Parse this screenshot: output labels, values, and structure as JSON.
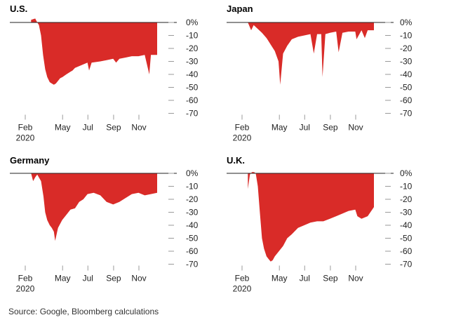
{
  "source": "Source: Google, Bloomberg calculations",
  "colors": {
    "fill": "#d92b28",
    "axis": "#222222",
    "tick": "#9a9a9a"
  },
  "chart_data": [
    {
      "type": "area",
      "title": "U.S.",
      "xlabel": "",
      "ylabel": "",
      "x_ticks": [
        "Feb",
        "May",
        "Jul",
        "Sep",
        "Nov"
      ],
      "x_year": "2020",
      "y_ticks": [
        "0%",
        "-10",
        "-20",
        "-30",
        "-40",
        "-50",
        "-60",
        "-70"
      ],
      "ylim": [
        -70,
        0
      ],
      "x": [
        "2020-02-15",
        "2020-02-25",
        "2020-03-01",
        "2020-03-05",
        "2020-03-10",
        "2020-03-15",
        "2020-03-20",
        "2020-03-25",
        "2020-03-31",
        "2020-04-05",
        "2020-04-10",
        "2020-04-15",
        "2020-04-20",
        "2020-04-25",
        "2020-05-01",
        "2020-05-10",
        "2020-05-20",
        "2020-05-25",
        "2020-05-31",
        "2020-06-15",
        "2020-06-30",
        "2020-07-04",
        "2020-07-10",
        "2020-07-31",
        "2020-08-15",
        "2020-08-31",
        "2020-09-07",
        "2020-09-15",
        "2020-09-30",
        "2020-10-15",
        "2020-10-31",
        "2020-11-15",
        "2020-11-26",
        "2020-11-30",
        "2020-12-15"
      ],
      "values": [
        2,
        3,
        0,
        -2,
        -10,
        -25,
        -36,
        -42,
        -46,
        -47,
        -48,
        -47,
        -45,
        -43,
        -42,
        -40,
        -38,
        -37,
        -35,
        -33,
        -31,
        -37,
        -31,
        -30,
        -29,
        -28,
        -31,
        -28,
        -27,
        -26,
        -26,
        -25,
        -40,
        -25,
        -25
      ]
    },
    {
      "type": "area",
      "title": "Japan",
      "xlabel": "",
      "ylabel": "",
      "x_ticks": [
        "Feb",
        "May",
        "Jul",
        "Sep",
        "Nov"
      ],
      "x_year": "2020",
      "y_ticks": [
        "0%",
        "-10",
        "-20",
        "-30",
        "-40",
        "-50",
        "-60",
        "-70"
      ],
      "ylim": [
        -70,
        0
      ],
      "x": [
        "2020-02-15",
        "2020-02-23",
        "2020-02-29",
        "2020-03-10",
        "2020-03-20",
        "2020-03-31",
        "2020-04-10",
        "2020-04-20",
        "2020-04-29",
        "2020-05-03",
        "2020-05-10",
        "2020-05-20",
        "2020-05-31",
        "2020-06-15",
        "2020-06-30",
        "2020-07-15",
        "2020-07-23",
        "2020-07-31",
        "2020-08-10",
        "2020-08-13",
        "2020-08-20",
        "2020-08-31",
        "2020-09-15",
        "2020-09-21",
        "2020-09-30",
        "2020-10-15",
        "2020-10-31",
        "2020-11-03",
        "2020-11-15",
        "2020-11-23",
        "2020-11-30",
        "2020-12-15"
      ],
      "values": [
        0,
        -6,
        -2,
        -5,
        -8,
        -12,
        -17,
        -22,
        -30,
        -48,
        -24,
        -18,
        -13,
        -11,
        -10,
        -9,
        -24,
        -9,
        -9,
        -42,
        -9,
        -8,
        -7,
        -23,
        -8,
        -7,
        -7,
        -13,
        -6,
        -12,
        -6,
        -6
      ]
    },
    {
      "type": "area",
      "title": "Germany",
      "xlabel": "",
      "ylabel": "",
      "x_ticks": [
        "Feb",
        "May",
        "Jul",
        "Sep",
        "Nov"
      ],
      "x_year": "2020",
      "y_ticks": [
        "0%",
        "-10",
        "-20",
        "-30",
        "-40",
        "-50",
        "-60",
        "-70"
      ],
      "ylim": [
        -70,
        0
      ],
      "x": [
        "2020-02-15",
        "2020-02-20",
        "2020-02-25",
        "2020-03-01",
        "2020-03-10",
        "2020-03-16",
        "2020-03-20",
        "2020-03-25",
        "2020-03-31",
        "2020-04-05",
        "2020-04-10",
        "2020-04-13",
        "2020-04-20",
        "2020-04-30",
        "2020-05-10",
        "2020-05-20",
        "2020-05-31",
        "2020-06-10",
        "2020-06-20",
        "2020-06-30",
        "2020-07-15",
        "2020-07-31",
        "2020-08-15",
        "2020-08-31",
        "2020-09-15",
        "2020-09-30",
        "2020-10-15",
        "2020-10-31",
        "2020-11-15",
        "2020-11-30",
        "2020-12-15"
      ],
      "values": [
        0,
        -6,
        -3,
        -1,
        -6,
        -18,
        -30,
        -36,
        -40,
        -42,
        -45,
        -52,
        -42,
        -36,
        -32,
        -28,
        -27,
        -22,
        -20,
        -16,
        -15,
        -17,
        -22,
        -24,
        -22,
        -19,
        -16,
        -15,
        -17,
        -16,
        -15
      ]
    },
    {
      "type": "area",
      "title": "U.K.",
      "xlabel": "",
      "ylabel": "",
      "x_ticks": [
        "Feb",
        "May",
        "Jul",
        "Sep",
        "Nov"
      ],
      "x_year": "2020",
      "y_ticks": [
        "0%",
        "-10",
        "-20",
        "-30",
        "-40",
        "-50",
        "-60",
        "-70"
      ],
      "ylim": [
        -70,
        0
      ],
      "x": [
        "2020-02-15",
        "2020-02-20",
        "2020-02-25",
        "2020-03-01",
        "2020-03-05",
        "2020-03-10",
        "2020-03-15",
        "2020-03-20",
        "2020-03-25",
        "2020-03-31",
        "2020-04-05",
        "2020-04-10",
        "2020-04-15",
        "2020-04-20",
        "2020-04-30",
        "2020-05-10",
        "2020-05-20",
        "2020-05-31",
        "2020-06-15",
        "2020-06-30",
        "2020-07-15",
        "2020-07-31",
        "2020-08-15",
        "2020-08-31",
        "2020-09-15",
        "2020-09-30",
        "2020-10-15",
        "2020-10-31",
        "2020-11-05",
        "2020-11-15",
        "2020-11-30",
        "2020-12-15"
      ],
      "values": [
        -12,
        -1,
        1,
        1,
        0,
        -10,
        -30,
        -50,
        -58,
        -64,
        -66,
        -68,
        -67,
        -64,
        -60,
        -56,
        -50,
        -47,
        -42,
        -40,
        -38,
        -37,
        -37,
        -35,
        -33,
        -31,
        -29,
        -28,
        -33,
        -35,
        -33,
        -26
      ]
    }
  ]
}
